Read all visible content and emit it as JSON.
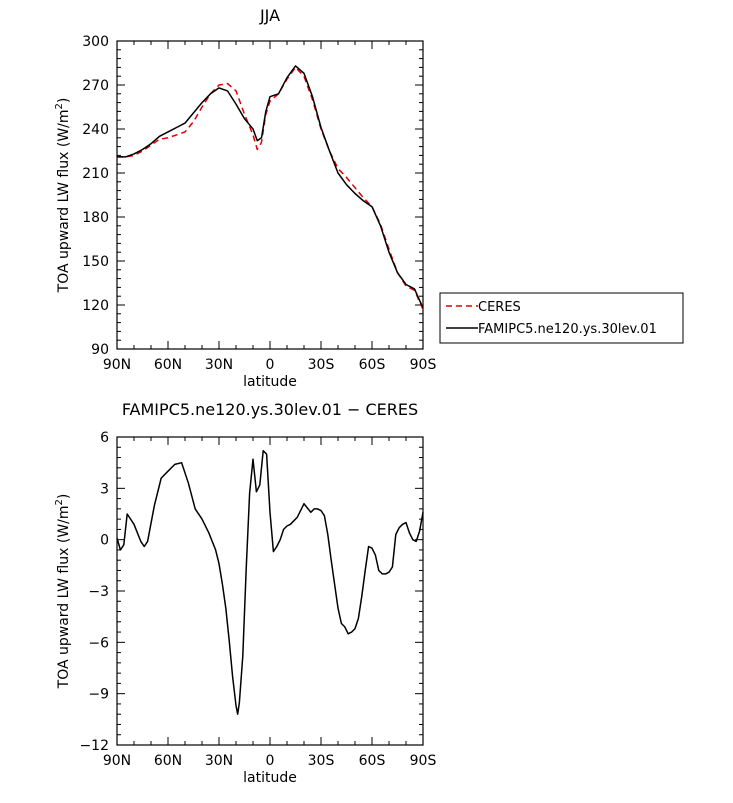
{
  "chart_data": [
    {
      "type": "line",
      "title": "JJA",
      "xlabel": "latitude",
      "ylabel": "TOA upward LW flux (W/m²)",
      "ylabel_parts": {
        "base": "TOA upward LW flux (W/m",
        "sup": "2",
        "end": ")"
      },
      "xlim": [
        90,
        -90
      ],
      "ylim": [
        90,
        300
      ],
      "x_ticks": [
        90,
        60,
        30,
        0,
        -30,
        -60,
        -90
      ],
      "x_tick_labels": [
        "90N",
        "60N",
        "30N",
        "0",
        "30S",
        "60S",
        "90S"
      ],
      "y_ticks": [
        90,
        120,
        150,
        180,
        210,
        240,
        270,
        300
      ],
      "y_tick_labels": [
        "90",
        "120",
        "150",
        "180",
        "210",
        "240",
        "270",
        "300"
      ],
      "grid": false,
      "legend": {
        "placement": "right",
        "entries": [
          "CERES",
          "FAMIPC5.ne120.ys.30lev.01"
        ]
      },
      "series": [
        {
          "name": "CERES",
          "color": "#e00000",
          "dash": "dashed",
          "x": [
            90,
            85,
            80,
            75,
            70,
            65,
            60,
            55,
            50,
            45,
            40,
            35,
            30,
            25,
            20,
            15,
            10,
            7.5,
            5,
            2.5,
            0,
            -5,
            -10,
            -15,
            -20,
            -25,
            -30,
            -35,
            -40,
            -45,
            -50,
            -55,
            -60,
            -65,
            -70,
            -75,
            -80,
            -85,
            -90
          ],
          "y": [
            221,
            221,
            222,
            225,
            229,
            233,
            234,
            236,
            238,
            245,
            255,
            264,
            270,
            271,
            266,
            250,
            236,
            226,
            231,
            250,
            259,
            264,
            274,
            282,
            276,
            260,
            240,
            225,
            213,
            207,
            200,
            193,
            187,
            175,
            158,
            142,
            133,
            130,
            117
          ]
        },
        {
          "name": "FAMIPC5.ne120.ys.30lev.01",
          "color": "#000000",
          "dash": "solid",
          "x": [
            90,
            85,
            80,
            75,
            70,
            65,
            60,
            55,
            50,
            45,
            40,
            35,
            30,
            25,
            20,
            15,
            10,
            7.5,
            5,
            2.5,
            0,
            -5,
            -10,
            -15,
            -20,
            -25,
            -30,
            -35,
            -40,
            -45,
            -50,
            -55,
            -60,
            -65,
            -70,
            -75,
            -80,
            -85,
            -90
          ],
          "y": [
            221,
            221,
            223,
            226,
            230,
            235,
            238,
            241,
            244,
            251,
            258,
            264,
            268,
            266,
            257,
            247,
            240,
            232,
            234,
            252,
            262,
            264,
            275,
            283,
            278,
            262,
            241,
            225,
            210,
            202,
            196,
            191,
            187,
            174,
            156,
            142,
            134,
            131,
            118
          ]
        }
      ]
    },
    {
      "type": "line",
      "title": "FAMIPC5.ne120.ys.30lev.01 − CERES",
      "xlabel": "latitude",
      "ylabel": "TOA upward LW flux (W/m²)",
      "ylabel_parts": {
        "base": "TOA upward LW flux (W/m",
        "sup": "2",
        "end": ")"
      },
      "xlim": [
        90,
        -90
      ],
      "ylim": [
        -12,
        6
      ],
      "x_ticks": [
        90,
        60,
        30,
        0,
        -30,
        -60,
        -90
      ],
      "x_tick_labels": [
        "90N",
        "60N",
        "30N",
        "0",
        "30S",
        "60S",
        "90S"
      ],
      "y_ticks": [
        -12,
        -9,
        -6,
        -3,
        0,
        3,
        6
      ],
      "y_tick_labels": [
        "−12",
        "−9",
        "−6",
        "−3",
        "0",
        "3",
        "6"
      ],
      "grid": false,
      "series": [
        {
          "color": "#000000",
          "dash": "solid",
          "x": [
            90,
            88,
            86,
            84,
            80,
            76,
            74,
            72,
            68,
            64,
            60,
            56,
            52,
            48,
            44,
            40,
            36,
            32,
            30,
            28,
            26,
            24,
            22,
            20,
            19,
            18,
            16,
            14,
            12,
            10,
            8,
            6,
            4,
            2,
            0,
            -2,
            -4,
            -6,
            -8,
            -10,
            -12,
            -14,
            -16,
            -20,
            -24,
            -26,
            -28,
            -30,
            -32,
            -34,
            -36,
            -38,
            -40,
            -42,
            -44,
            -46,
            -48,
            -50,
            -52,
            -54,
            -56,
            -58,
            -60,
            -62,
            -64,
            -66,
            -68,
            -70,
            -72,
            -74,
            -76,
            -78,
            -80,
            -82,
            -84,
            -86,
            -88,
            -90
          ],
          "y": [
            0.1,
            -0.6,
            -0.3,
            1.5,
            0.9,
            -0.1,
            -0.4,
            -0.1,
            2.0,
            3.6,
            4.0,
            4.4,
            4.5,
            3.3,
            1.8,
            1.2,
            0.4,
            -0.6,
            -1.4,
            -2.6,
            -4.0,
            -5.9,
            -8.0,
            -9.7,
            -10.2,
            -9.5,
            -6.8,
            -1.7,
            2.7,
            4.7,
            2.8,
            3.2,
            5.2,
            5.0,
            1.6,
            -0.7,
            -0.4,
            0.0,
            0.6,
            0.8,
            0.9,
            1.1,
            1.3,
            2.1,
            1.6,
            1.8,
            1.8,
            1.7,
            1.4,
            0.3,
            -1.2,
            -2.6,
            -4.0,
            -4.9,
            -5.1,
            -5.5,
            -5.4,
            -5.2,
            -4.6,
            -3.3,
            -1.8,
            -0.4,
            -0.5,
            -0.9,
            -1.8,
            -2.0,
            -2.0,
            -1.9,
            -1.6,
            0.3,
            0.7,
            0.9,
            1.0,
            0.4,
            0.0,
            -0.1,
            0.5,
            1.6
          ]
        }
      ]
    }
  ]
}
